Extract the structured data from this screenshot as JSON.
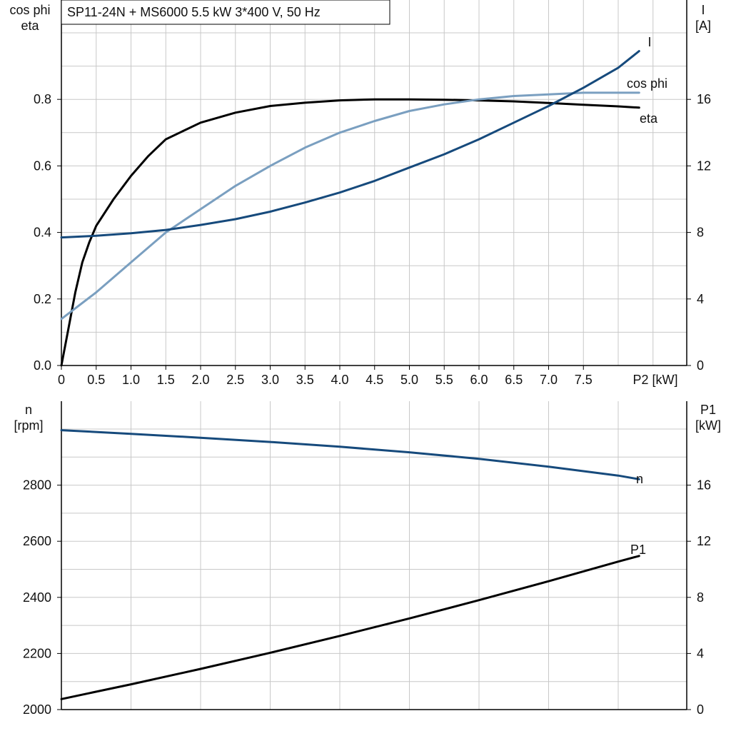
{
  "chart_data": [
    {
      "type": "line",
      "title": "SP11-24N + MS6000   5.5 kW   3*400 V, 50 Hz",
      "xlabel": "P2 [kW]",
      "ylabel_left": [
        "cos phi",
        "eta"
      ],
      "ylabel_right": [
        "I",
        "[A]"
      ],
      "xlim": [
        0,
        9
      ],
      "ylim_left": [
        0,
        1.0
      ],
      "ylim_right": [
        0,
        20
      ],
      "xticks": [
        "0",
        "0.5",
        "1.0",
        "1.5",
        "2.0",
        "2.5",
        "3.0",
        "3.5",
        "4.0",
        "4.5",
        "5.0",
        "5.5",
        "6.0",
        "6.5",
        "7.0",
        "7.5"
      ],
      "yticks_left": [
        "0.0",
        "0.2",
        "0.4",
        "0.6",
        "0.8"
      ],
      "yticks_right": [
        "0",
        "4",
        "8",
        "12",
        "16"
      ],
      "grid": true,
      "series": [
        {
          "name": "eta",
          "axis": "left",
          "color": "#000000",
          "x": [
            0,
            0.1,
            0.2,
            0.3,
            0.4,
            0.5,
            0.75,
            1.0,
            1.25,
            1.5,
            2.0,
            2.5,
            3.0,
            3.5,
            4.0,
            4.5,
            5.0,
            5.5,
            6.0,
            6.5,
            7.0,
            7.5,
            8.0,
            8.3
          ],
          "y": [
            0.0,
            0.11,
            0.22,
            0.31,
            0.37,
            0.42,
            0.5,
            0.57,
            0.63,
            0.68,
            0.73,
            0.76,
            0.78,
            0.79,
            0.797,
            0.8,
            0.8,
            0.799,
            0.797,
            0.794,
            0.789,
            0.784,
            0.779,
            0.775
          ]
        },
        {
          "name": "cos phi",
          "axis": "left",
          "color": "#7a9fc0",
          "x": [
            0,
            0.5,
            1.0,
            1.5,
            2.0,
            2.5,
            3.0,
            3.5,
            4.0,
            4.5,
            5.0,
            5.5,
            6.0,
            6.5,
            7.0,
            7.5,
            8.0,
            8.3
          ],
          "y": [
            0.14,
            0.22,
            0.31,
            0.4,
            0.47,
            0.54,
            0.6,
            0.655,
            0.7,
            0.735,
            0.765,
            0.785,
            0.8,
            0.81,
            0.815,
            0.82,
            0.82,
            0.82
          ]
        },
        {
          "name": "I",
          "axis": "right",
          "color": "#164a7c",
          "x": [
            0,
            0.5,
            1.0,
            1.5,
            2.0,
            2.5,
            3.0,
            3.5,
            4.0,
            4.5,
            5.0,
            5.5,
            6.0,
            6.5,
            7.0,
            7.5,
            8.0,
            8.3
          ],
          "y": [
            7.7,
            7.8,
            7.95,
            8.15,
            8.45,
            8.8,
            9.25,
            9.8,
            10.4,
            11.1,
            11.9,
            12.7,
            13.6,
            14.6,
            15.6,
            16.7,
            17.9,
            18.9
          ]
        }
      ]
    },
    {
      "type": "line",
      "xlim": [
        0,
        9
      ],
      "ylabel_left": [
        "n",
        "[rpm]"
      ],
      "ylabel_right": [
        "P1",
        "[kW]"
      ],
      "ylim_left": [
        2000,
        3100
      ],
      "ylim_right": [
        0,
        22
      ],
      "yticks_left": [
        "2000",
        "2200",
        "2400",
        "2600",
        "2800"
      ],
      "yticks_right": [
        "0",
        "4",
        "8",
        "12",
        "16"
      ],
      "grid": true,
      "series": [
        {
          "name": "n",
          "axis": "left",
          "color": "#164a7c",
          "x": [
            0,
            1.0,
            2.0,
            3.0,
            4.0,
            5.0,
            6.0,
            7.0,
            8.0,
            8.3
          ],
          "y": [
            2996,
            2983,
            2969,
            2954,
            2937,
            2917,
            2894,
            2866,
            2834,
            2821
          ]
        },
        {
          "name": "P1",
          "axis": "right",
          "color": "#000000",
          "x": [
            0,
            1.0,
            2.0,
            3.0,
            4.0,
            5.0,
            6.0,
            7.0,
            8.0,
            8.3
          ],
          "y": [
            0.75,
            1.8,
            2.9,
            4.05,
            5.25,
            6.5,
            7.8,
            9.15,
            10.55,
            10.95
          ]
        }
      ]
    }
  ]
}
